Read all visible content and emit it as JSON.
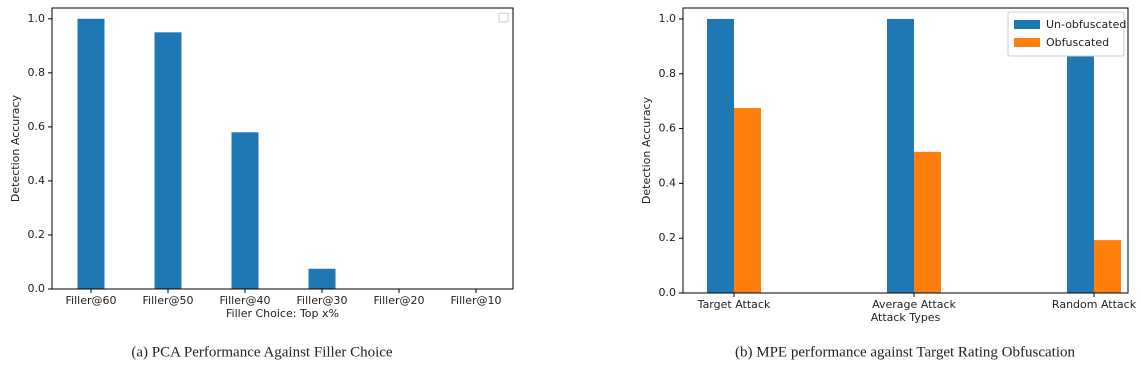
{
  "chart_data": [
    {
      "type": "bar",
      "caption": "(a) PCA Performance Against Filler Choice",
      "x_label": "Filler Choice: Top x%",
      "y_label": "Detection Accuracy",
      "categories": [
        "Filler@60",
        "Filler@50",
        "Filler@40",
        "Filler@30",
        "Filler@20",
        "Filler@10"
      ],
      "values": [
        1.0,
        0.95,
        0.58,
        0.075,
        0,
        0
      ],
      "color": "#1f77b4",
      "ylim": [
        0,
        1.04
      ],
      "yticks": [
        {
          "value": 0,
          "label": "0.0"
        },
        0.2,
        0.4,
        0.6,
        0.8,
        {
          "value": 1,
          "label": "1.0"
        }
      ]
    },
    {
      "type": "bar",
      "caption": "(b) MPE performance against Target Rating Obfuscation",
      "x_label": "Attack Types",
      "y_label": "Detection Accuracy",
      "categories": [
        "Target Attack",
        "Average Attack",
        "Random Attack"
      ],
      "series": [
        {
          "name": "Un-obfuscated",
          "color": "#1f77b4",
          "values": [
            1.0,
            1.0,
            1.0
          ]
        },
        {
          "name": "Obfuscated",
          "color": "#ff7f0e",
          "values": [
            0.675,
            0.515,
            0.193
          ]
        }
      ],
      "ylim": [
        0,
        1.04
      ],
      "yticks": [
        {
          "value": 0,
          "label": "0.0"
        },
        0.2,
        0.4,
        0.6,
        0.8,
        {
          "value": 1,
          "label": "1.0"
        }
      ],
      "legend": "upper right"
    }
  ]
}
